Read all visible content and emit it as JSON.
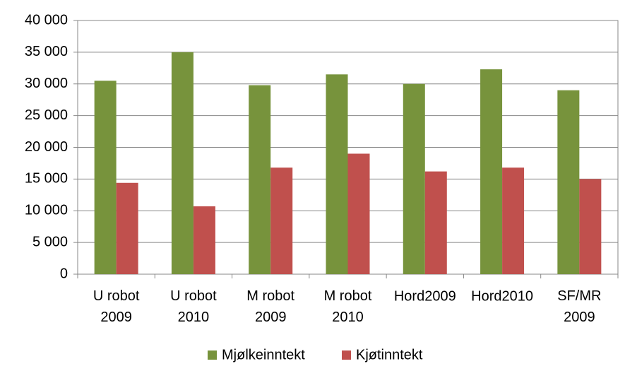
{
  "chart_data": {
    "type": "bar",
    "categories": [
      "U robot 2009",
      "U robot 2010",
      "M robot 2009",
      "M robot 2010",
      "Hord2009",
      "Hord2010",
      "SF/MR 2009"
    ],
    "series": [
      {
        "name": "Mjølkeinntekt",
        "color": "#77933c",
        "values": [
          30500,
          35000,
          29800,
          31500,
          30000,
          32300,
          29000
        ]
      },
      {
        "name": "Kjøtinntekt",
        "color": "#c0504d",
        "values": [
          14400,
          10700,
          16800,
          19000,
          16200,
          16800,
          15000
        ]
      }
    ],
    "ylim": [
      0,
      40000
    ],
    "yticks": [
      0,
      {
        "value": 5000,
        "label": "5 000"
      },
      {
        "value": 10000,
        "label": "10 000"
      },
      {
        "value": 15000,
        "label": "15 000"
      },
      {
        "value": 20000,
        "label": "20 000"
      },
      {
        "value": 25000,
        "label": "25 000"
      },
      {
        "value": 30000,
        "label": "30 000"
      },
      {
        "value": 35000,
        "label": "35 000"
      },
      {
        "value": 40000,
        "label": "40 000"
      }
    ],
    "grid": true,
    "legend": "bottom"
  }
}
